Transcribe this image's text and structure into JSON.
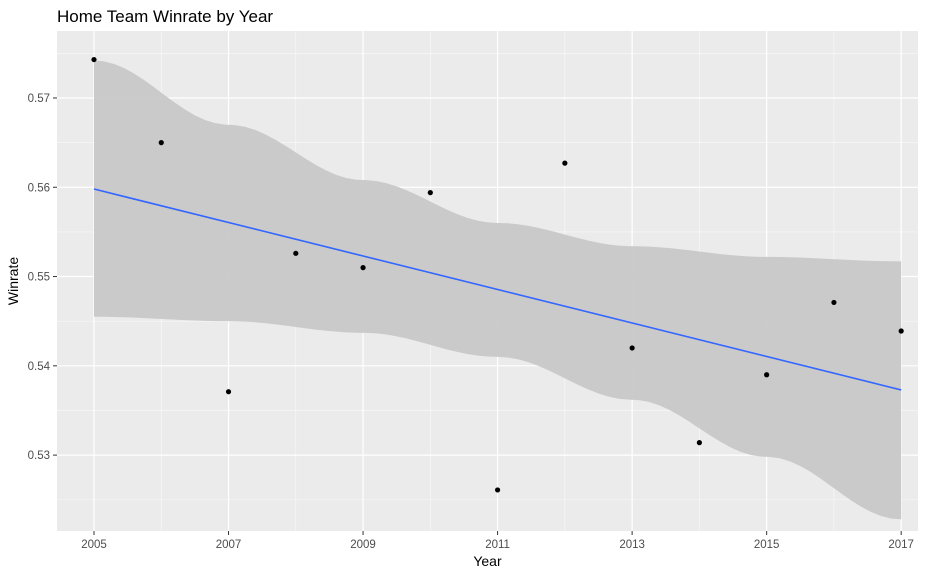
{
  "chart_data": {
    "type": "scatter",
    "title": "Home Team Winrate by Year",
    "xlabel": "Year",
    "ylabel": "Winrate",
    "x_ticks": [
      "2005",
      "2007",
      "2009",
      "2011",
      "2013",
      "2015",
      "2017"
    ],
    "y_ticks": [
      "0.53",
      "0.54",
      "0.55",
      "0.56",
      "0.57"
    ],
    "xlim": [
      2004.45,
      2017.25
    ],
    "ylim": [
      0.5215,
      0.5775
    ],
    "points": [
      {
        "x": 2005,
        "y": 0.5743
      },
      {
        "x": 2006,
        "y": 0.565
      },
      {
        "x": 2007,
        "y": 0.5371
      },
      {
        "x": 2008,
        "y": 0.5526
      },
      {
        "x": 2009,
        "y": 0.551
      },
      {
        "x": 2010,
        "y": 0.5594
      },
      {
        "x": 2011,
        "y": 0.5261
      },
      {
        "x": 2012,
        "y": 0.5627
      },
      {
        "x": 2013,
        "y": 0.542
      },
      {
        "x": 2014,
        "y": 0.5314
      },
      {
        "x": 2015,
        "y": 0.539
      },
      {
        "x": 2016,
        "y": 0.5471
      },
      {
        "x": 2017,
        "y": 0.5439
      }
    ],
    "trend": {
      "method": "linear fit",
      "start": {
        "x": 2005,
        "y": 0.5598
      },
      "end": {
        "x": 2017,
        "y": 0.5373
      },
      "ribbon": [
        {
          "x": 2005,
          "low": 0.5455,
          "high": 0.5742
        },
        {
          "x": 2007,
          "low": 0.545,
          "high": 0.567
        },
        {
          "x": 2009,
          "low": 0.5437,
          "high": 0.5608
        },
        {
          "x": 2011,
          "low": 0.541,
          "high": 0.556
        },
        {
          "x": 2013,
          "low": 0.5362,
          "high": 0.5534
        },
        {
          "x": 2015,
          "low": 0.5298,
          "high": 0.5522
        },
        {
          "x": 2017,
          "low": 0.5228,
          "high": 0.5517
        }
      ]
    },
    "grid": true,
    "colors": {
      "panel": "#ebebeb",
      "grid_major": "#ffffff",
      "points": "#000000",
      "trend_line": "#3366ff",
      "ribbon": "#c8c8c8"
    }
  }
}
